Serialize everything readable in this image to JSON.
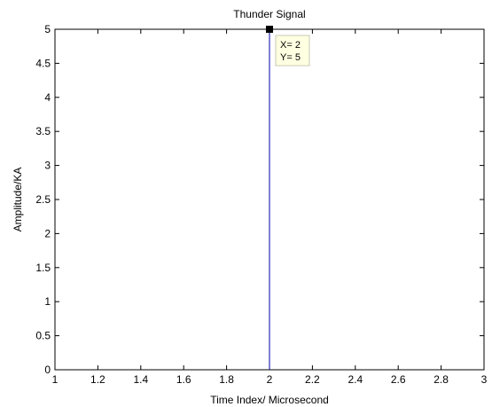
{
  "chart_data": {
    "type": "line",
    "title": "Thunder Signal",
    "xlabel": "Time Index/ Microsecond",
    "ylabel": "Amplitude/KA",
    "xlim": [
      1,
      3
    ],
    "ylim": [
      0,
      5
    ],
    "x_ticks": [
      "1",
      "1.2",
      "1.4",
      "1.6",
      "1.8",
      "2",
      "2.2",
      "2.4",
      "2.6",
      "2.8",
      "3"
    ],
    "y_ticks": [
      "0",
      "0.5",
      "1",
      "1.5",
      "2",
      "2.5",
      "3",
      "3.5",
      "4",
      "4.5",
      "5"
    ],
    "grid": false,
    "series": [
      {
        "x": [
          2,
          2
        ],
        "y": [
          0,
          5
        ],
        "color": "#0000aa"
      }
    ],
    "datatip": {
      "x": 2,
      "y": 5,
      "text_x": "X= 2",
      "text_y": "Y= 5"
    }
  }
}
